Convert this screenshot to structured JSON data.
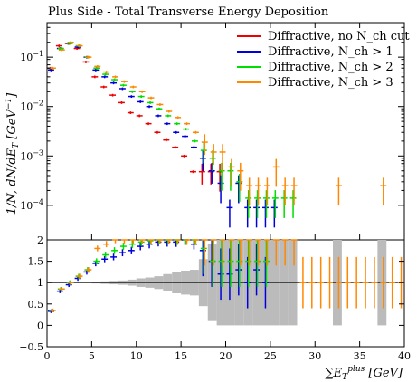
{
  "chart_data": {
    "type": "scatter",
    "title": "Plus Side - Total Transverse Energy Deposition",
    "xlabel": "∑E_T^plus [GeV]",
    "ylabel": "1/N dN/dE_T [GeV^-1]",
    "xlim": [
      0,
      40
    ],
    "ylim_main": [
      2e-05,
      0.5
    ],
    "yscale_main": "log",
    "ylim_ratio": [
      -0.5,
      2.0
    ],
    "x_ticks": [
      0,
      5,
      10,
      15,
      20,
      25,
      30,
      35,
      40
    ],
    "y_ticks_main": [
      "10^-4",
      "10^-3",
      "10^-2",
      "10^-1"
    ],
    "y_ticks_ratio": [
      -0.5,
      0,
      0.5,
      1,
      1.5,
      2
    ],
    "legend_position": "top-right",
    "series": [
      {
        "name": "Diffractive, no N_ch cut",
        "color": "#ee0000",
        "x": [
          0.5,
          1.5,
          2.5,
          3.5,
          4.5,
          5.5,
          6.5,
          7.5,
          8.5,
          9.5,
          10.5,
          11.5,
          12.5,
          13.5,
          14.5,
          15.5,
          16.5,
          17.5,
          18.5,
          19.5
        ],
        "values": [
          0.06,
          0.17,
          0.19,
          0.15,
          0.08,
          0.04,
          0.025,
          0.017,
          0.012,
          0.0075,
          0.0065,
          0.0045,
          0.003,
          0.0021,
          0.0015,
          0.001,
          0.00048,
          0.00048,
          0.00048,
          0.00048
        ]
      },
      {
        "name": "Diffractive, N_ch > 1",
        "color": "#0000dd",
        "x": [
          0.5,
          1.5,
          2.5,
          3.5,
          4.5,
          5.5,
          6.5,
          7.5,
          8.5,
          9.5,
          10.5,
          11.5,
          12.5,
          13.5,
          14.5,
          15.5,
          16.5,
          17.5,
          18.5,
          19.5,
          20.5,
          21.5,
          22.5,
          23.5,
          24.5,
          25.5
        ],
        "values": [
          0.055,
          0.15,
          0.19,
          0.16,
          0.1,
          0.055,
          0.04,
          0.03,
          0.023,
          0.016,
          0.0125,
          0.01,
          0.0065,
          0.0045,
          0.003,
          0.0025,
          0.0015,
          0.0009,
          0.0005,
          0.00028,
          9e-05,
          0.00028,
          9e-05,
          9e-05,
          9e-05,
          9e-05
        ]
      },
      {
        "name": "Diffractive, N_ch > 2",
        "color": "#00dd00",
        "x": [
          0.5,
          1.5,
          2.5,
          3.5,
          4.5,
          5.5,
          6.5,
          7.5,
          8.5,
          9.5,
          10.5,
          11.5,
          12.5,
          13.5,
          14.5,
          15.5,
          16.5,
          17.5,
          18.5,
          19.5,
          20.5,
          21.5,
          22.5,
          23.5,
          24.5,
          25.5,
          26.5,
          27.5
        ],
        "values": [
          0.06,
          0.15,
          0.19,
          0.17,
          0.1,
          0.06,
          0.045,
          0.035,
          0.027,
          0.02,
          0.016,
          0.012,
          0.009,
          0.0065,
          0.0045,
          0.0035,
          0.002,
          0.0013,
          0.0009,
          0.0005,
          0.0005,
          0.0003,
          0.00014,
          0.00014,
          0.00014,
          0.00014,
          0.00014,
          0.00014
        ]
      },
      {
        "name": "Diffractive, N_ch > 3",
        "color": "#ff8800",
        "x": [
          0.5,
          1.5,
          2.5,
          3.5,
          4.5,
          5.5,
          6.5,
          7.5,
          8.5,
          9.5,
          10.5,
          11.5,
          12.5,
          13.5,
          14.5,
          15.5,
          16.5,
          17.5,
          18.5,
          19.5,
          20.5,
          21.5,
          22.5,
          23.5,
          24.5,
          25.5,
          26.5,
          27.5,
          32.5,
          37.5
        ],
        "values": [
          0.06,
          0.14,
          0.2,
          0.17,
          0.1,
          0.065,
          0.05,
          0.04,
          0.032,
          0.025,
          0.02,
          0.015,
          0.011,
          0.008,
          0.006,
          0.0045,
          0.003,
          0.0019,
          0.0012,
          0.0012,
          0.0006,
          0.0005,
          0.00025,
          0.00025,
          0.00025,
          0.0006,
          0.00025,
          0.00025,
          0.00025,
          0.00025
        ]
      }
    ],
    "ratio_series": [
      {
        "name": "Diffractive, N_ch > 1",
        "color": "#0000dd",
        "x": [
          0.5,
          1.5,
          2.5,
          3.5,
          4.5,
          5.5,
          6.5,
          7.5,
          8.5,
          9.5,
          10.5,
          11.5,
          12.5,
          13.5,
          14.5,
          15.5,
          16.5,
          17.5,
          18.5,
          19.5,
          20.5,
          21.5,
          22.5,
          23.5,
          24.5
        ],
        "values": [
          0.33,
          0.8,
          0.95,
          1.1,
          1.25,
          1.45,
          1.55,
          1.6,
          1.7,
          1.75,
          1.85,
          1.9,
          1.95,
          1.95,
          1.95,
          2.0,
          1.9,
          1.75,
          1.5,
          1.2,
          1.2,
          1.3,
          1.0,
          1.3,
          1.0
        ]
      },
      {
        "name": "Diffractive, N_ch > 2",
        "color": "#00dd00",
        "x": [
          0.5,
          1.5,
          2.5,
          3.5,
          4.5,
          5.5,
          6.5,
          7.5,
          8.5,
          9.5,
          10.5,
          11.5,
          12.5,
          13.5,
          14.5,
          15.5,
          16.5,
          17.5,
          18.5,
          19.5,
          20.5,
          21.5,
          22.5,
          23.5,
          24.5
        ],
        "values": [
          0.35,
          0.85,
          1.0,
          1.15,
          1.3,
          1.5,
          1.65,
          1.75,
          1.85,
          1.9,
          1.95,
          1.98,
          2.0,
          2.0,
          2.0,
          2.0,
          2.0,
          1.8,
          1.5,
          1.5,
          1.5,
          1.5,
          1.5,
          1.5,
          1.5
        ]
      },
      {
        "name": "Diffractive, N_ch > 3",
        "color": "#ff8800",
        "x": [
          0.5,
          1.5,
          2.5,
          3.5,
          4.5,
          5.5,
          6.5,
          7.5,
          8.5,
          9.5,
          10.5,
          11.5,
          12.5,
          13.5,
          14.5,
          15.5,
          16.5,
          17.5,
          18.5,
          19.5,
          20.5,
          21.5,
          22.5,
          23.5,
          24.5,
          25.5,
          26.5,
          27.5,
          28.5,
          29.5,
          30.5,
          31.5,
          32.5,
          33.5,
          34.5,
          35.5,
          36.5,
          37.5,
          38.5,
          39.5
        ],
        "values": [
          0.35,
          0.85,
          1.0,
          1.15,
          1.3,
          1.8,
          1.9,
          2.0,
          2.0,
          2.0,
          2.0,
          2.0,
          2.0,
          2.0,
          2.0,
          2.0,
          2.0,
          2.0,
          2.0,
          2.0,
          2.0,
          2.0,
          2.0,
          2.0,
          2.0,
          2.0,
          2.0,
          2.0,
          1.0,
          1.0,
          1.0,
          1.0,
          1.0,
          1.0,
          1.0,
          1.0,
          1.0,
          1.0,
          1.0,
          1.0
        ]
      }
    ],
    "ratio_error_band": {
      "color": "#bbbbbb",
      "x": [
        0.5,
        1.5,
        2.5,
        3.5,
        4.5,
        5.5,
        6.5,
        7.5,
        8.5,
        9.5,
        10.5,
        11.5,
        12.5,
        13.5,
        14.5,
        15.5,
        16.5,
        17.5,
        18.5,
        19.5,
        20.5,
        21.5,
        22.5,
        23.5,
        24.5,
        25.5,
        26.5,
        27.5,
        32.5,
        37.5
      ],
      "halfwidth": [
        0.01,
        0.01,
        0.01,
        0.01,
        0.01,
        0.02,
        0.03,
        0.04,
        0.05,
        0.07,
        0.1,
        0.12,
        0.15,
        0.2,
        0.25,
        0.28,
        0.3,
        0.55,
        0.9,
        1.0,
        1.0,
        1.0,
        1.0,
        1.0,
        1.0,
        1.0,
        1.0,
        1.0,
        1.0,
        1.0
      ]
    }
  }
}
